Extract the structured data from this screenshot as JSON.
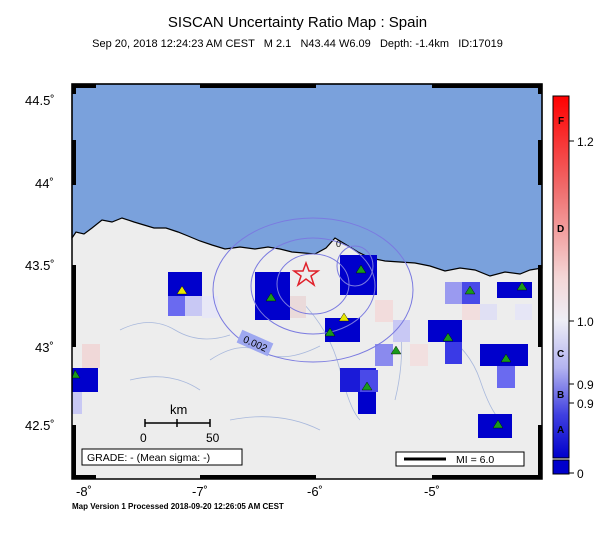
{
  "header": {
    "title": "SISCAN Uncertainty Ratio Map : Spain",
    "subtitle": "Sep 20, 2018 12:24:23 AM CEST   M 2.1   N43.44 W6.09   Depth: -1.4km   ID:17019"
  },
  "map": {
    "lat_labels": [
      "44.5˚",
      "44˚",
      "43.5˚",
      "43˚",
      "42.5˚"
    ],
    "lon_labels": [
      "-8˚",
      "-7˚",
      "-6˚",
      "-5˚"
    ],
    "contour_label": "0.002",
    "contour_top_label": "0",
    "epicenter": {
      "lat": 43.44,
      "lon": -6.09
    },
    "scalebar": {
      "unit": "km",
      "start": "0",
      "end": "50"
    },
    "grade_text": "GRADE: - (Mean sigma: -)",
    "mi_text": "MI = 6.0",
    "colors": {
      "sea": "#7aa1dc",
      "land": "#ededed",
      "epicenter": "#e0202a",
      "station_green": "#1a9a1a",
      "station_yellow": "#e6e600",
      "cell_blue": "#0000cc"
    }
  },
  "colorbar": {
    "letter_labels": [
      "F",
      "D",
      "C",
      "B",
      "A"
    ],
    "value_labels": [
      "1.2",
      "1.0",
      "0.9",
      "0.9",
      "0"
    ]
  },
  "footer": {
    "text": "Map Version 1 Processed 2018-09-20 12:26:05 AM CEST"
  }
}
